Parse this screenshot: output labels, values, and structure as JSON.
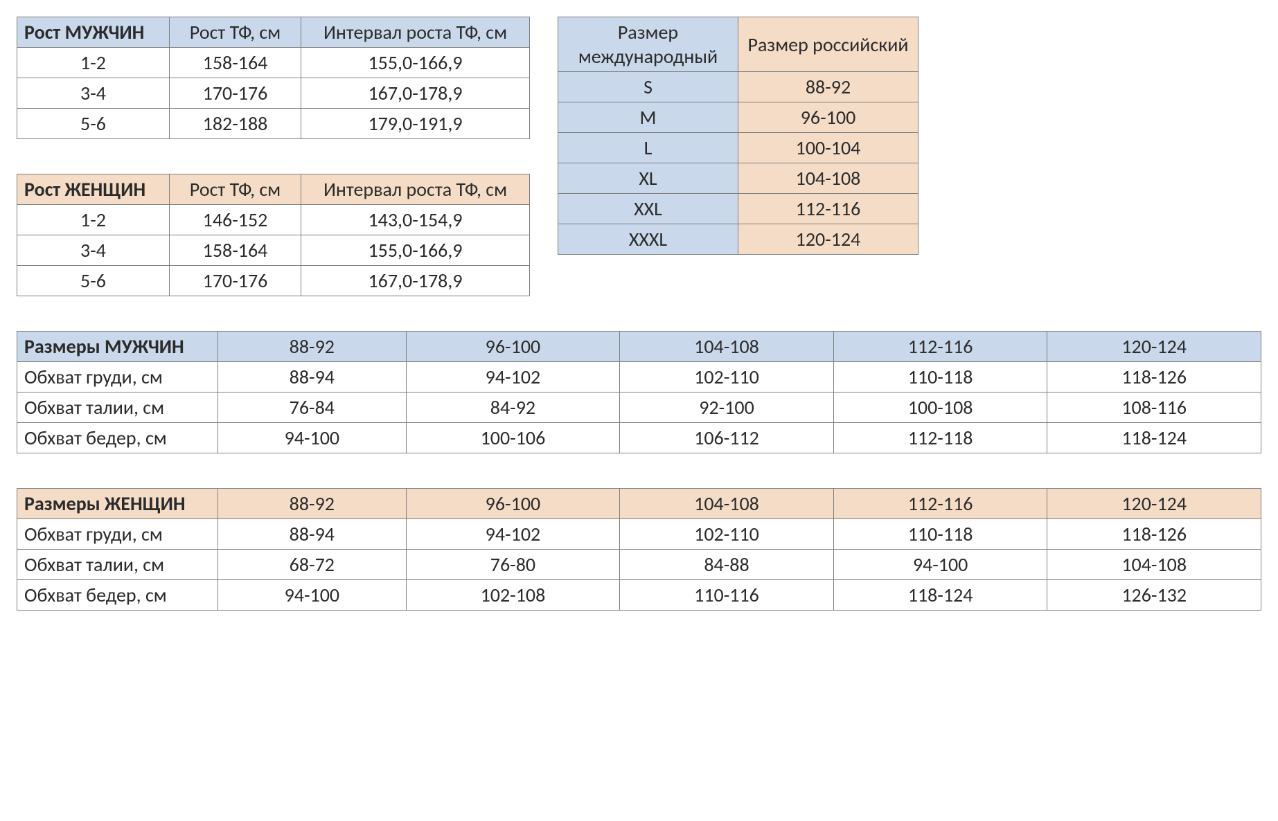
{
  "colors": {
    "header_blue": "#c9d8ea",
    "header_peach": "#f4dcc6",
    "border": "#7f7f7f",
    "text": "#2b2b2b",
    "bg": "#ffffff"
  },
  "fontsize_pt": 21,
  "height_men": {
    "headers": [
      "Рост МУЖЧИН",
      "Рост ТФ, см",
      "Интервал роста ТФ, см"
    ],
    "rows": [
      [
        "1-2",
        "158-164",
        "155,0-166,9"
      ],
      [
        "3-4",
        "170-176",
        "167,0-178,9"
      ],
      [
        "5-6",
        "182-188",
        "179,0-191,9"
      ]
    ]
  },
  "height_women": {
    "headers": [
      "Рост ЖЕНЩИН",
      "Рост ТФ, см",
      "Интервал роста ТФ, см"
    ],
    "rows": [
      [
        "1-2",
        "146-152",
        "143,0-154,9"
      ],
      [
        "3-4",
        "158-164",
        "155,0-166,9"
      ],
      [
        "5-6",
        "170-176",
        "167,0-178,9"
      ]
    ]
  },
  "size_map": {
    "headers": [
      "Размер международный",
      "Размер российский"
    ],
    "rows": [
      [
        "S",
        "88-92"
      ],
      [
        "M",
        "96-100"
      ],
      [
        "L",
        "100-104"
      ],
      [
        "XL",
        "104-108"
      ],
      [
        "XXL",
        "112-116"
      ],
      [
        "XXXL",
        "120-124"
      ]
    ]
  },
  "sizes_men": {
    "title": "Размеры МУЖЧИН",
    "size_headers": [
      "88-92",
      "96-100",
      "104-108",
      "112-116",
      "120-124"
    ],
    "rows": [
      {
        "label": "Обхват груди, см",
        "vals": [
          "88-94",
          "94-102",
          "102-110",
          "110-118",
          "118-126"
        ]
      },
      {
        "label": "Обхват талии, см",
        "vals": [
          "76-84",
          "84-92",
          "92-100",
          "100-108",
          "108-116"
        ]
      },
      {
        "label": "Обхват бедер, см",
        "vals": [
          "94-100",
          "100-106",
          "106-112",
          "112-118",
          "118-124"
        ]
      }
    ]
  },
  "sizes_women": {
    "title": "Размеры ЖЕНЩИН",
    "size_headers": [
      "88-92",
      "96-100",
      "104-108",
      "112-116",
      "120-124"
    ],
    "rows": [
      {
        "label": "Обхват груди, см",
        "vals": [
          "88-94",
          "94-102",
          "102-110",
          "110-118",
          "118-126"
        ]
      },
      {
        "label": "Обхват талии, см",
        "vals": [
          "68-72",
          "76-80",
          "84-88",
          "94-100",
          "104-108"
        ]
      },
      {
        "label": "Обхват бедер, см",
        "vals": [
          "94-100",
          "102-108",
          "110-116",
          "118-124",
          "126-132"
        ]
      }
    ]
  }
}
